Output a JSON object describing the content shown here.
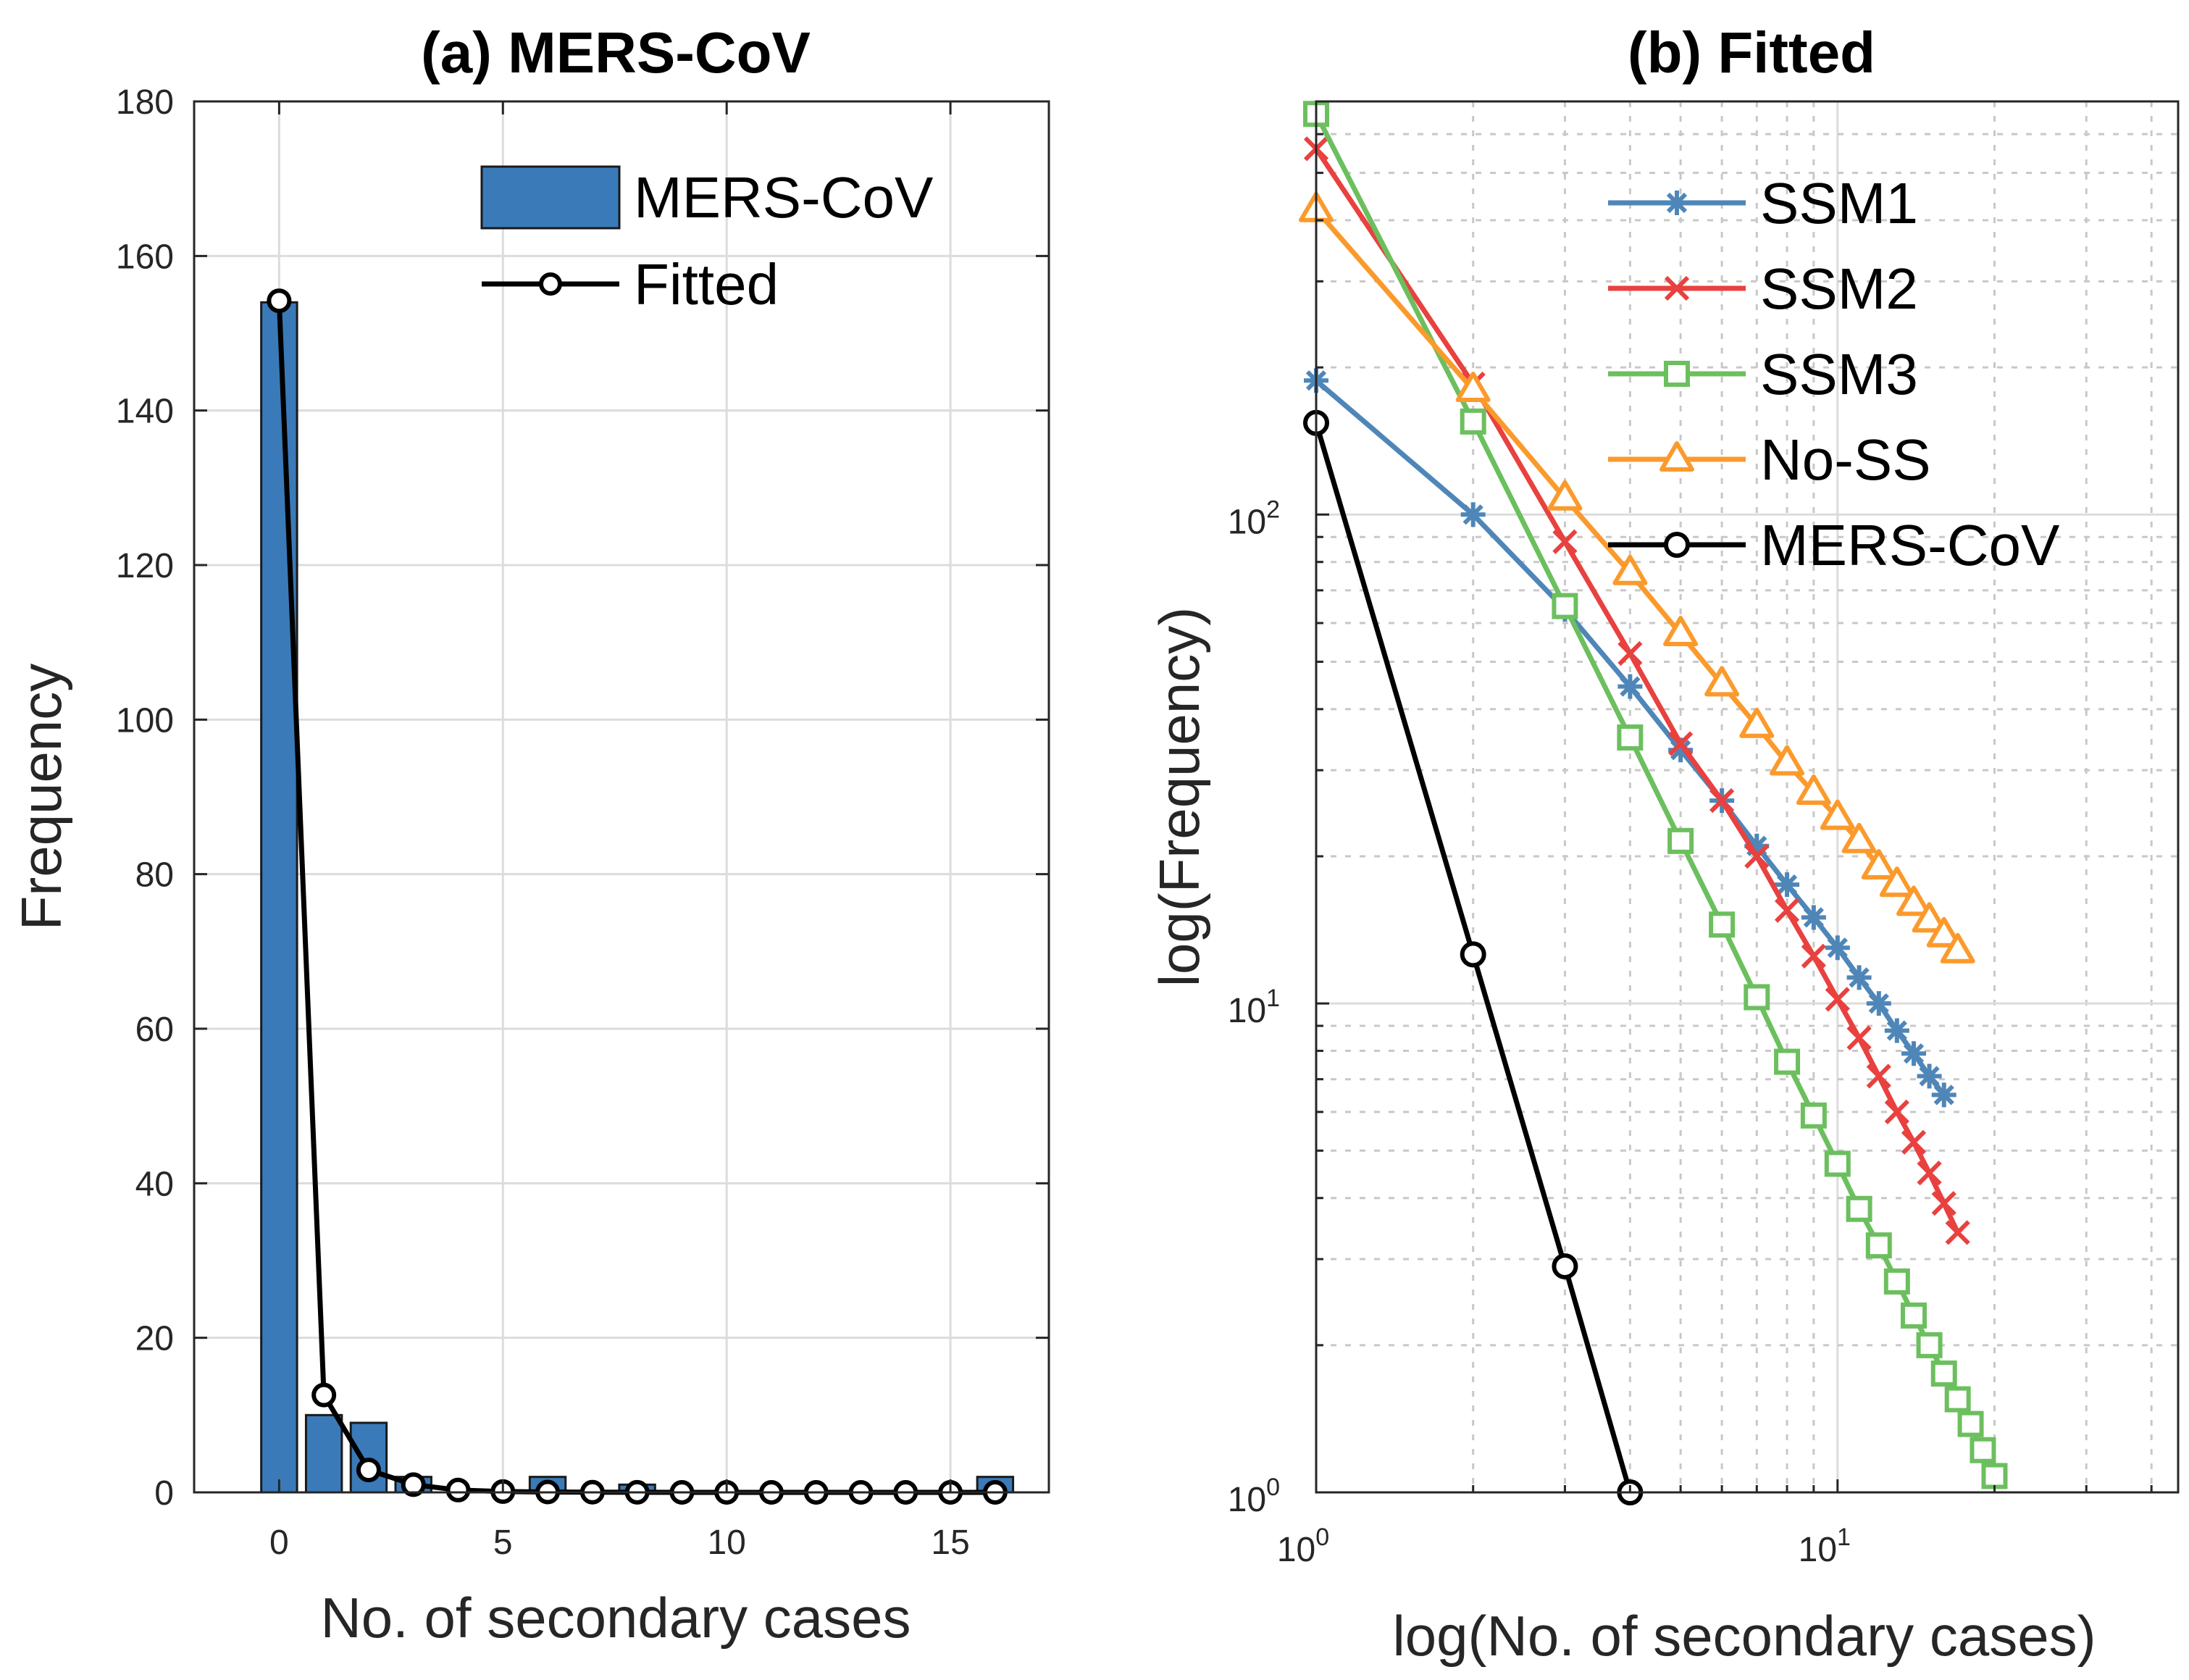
{
  "panel_a": {
    "title": "(a) MERS-CoV",
    "xlabel": "No. of secondary cases",
    "ylabel": "Frequency",
    "legend": [
      "MERS-CoV",
      "Fitted"
    ]
  },
  "panel_b": {
    "title": "(b) Fitted",
    "xlabel": "log(No. of secondary cases)",
    "ylabel": "log(Frequency)",
    "legend": [
      "SSM1",
      "SSM2",
      "SSM3",
      "No-SS",
      "MERS-CoV"
    ]
  },
  "colors": {
    "bar": "#3a7ab8",
    "fitted": "#000000",
    "SSM1": "#4f86b8",
    "SSM2": "#e8413f",
    "SSM3": "#6cbf5e",
    "No-SS": "#fb9a2c",
    "MERS-CoV": "#000000"
  },
  "chart_data": [
    {
      "type": "bar",
      "title": "(a) MERS-CoV",
      "xlabel": "No. of secondary cases",
      "ylabel": "Frequency",
      "xlim": [
        -1.9,
        17.2
      ],
      "ylim": [
        0,
        180
      ],
      "xticks": [
        0,
        5,
        10,
        15
      ],
      "yticks": [
        0,
        20,
        40,
        60,
        80,
        100,
        120,
        140,
        160,
        180
      ],
      "grid": true,
      "legend_position": "top-right",
      "bar_series": {
        "name": "MERS-CoV",
        "x": [
          0,
          1,
          2,
          3,
          4,
          5,
          6,
          7,
          8,
          9,
          10,
          11,
          12,
          13,
          14,
          15,
          16
        ],
        "values": [
          154,
          10,
          9,
          2,
          0,
          0,
          2,
          0,
          1,
          0,
          0,
          0,
          0,
          0,
          0,
          0,
          2
        ]
      },
      "line_series": {
        "name": "Fitted",
        "x": [
          0,
          1,
          2,
          3,
          4,
          5,
          6,
          7,
          8,
          9,
          10,
          11,
          12,
          13,
          14,
          15,
          16
        ],
        "values": [
          154.2,
          12.6,
          2.9,
          1.0,
          0.3,
          0.1,
          0.05,
          0.02,
          0.01,
          0,
          0,
          0,
          0,
          0,
          0,
          0,
          0
        ]
      }
    },
    {
      "type": "line",
      "title": "(b) Fitted",
      "xlabel": "log(No. of secondary cases)",
      "ylabel": "log(Frequency)",
      "x_scale": "log",
      "y_scale": "log",
      "xlim": [
        1,
        45
      ],
      "ylim": [
        1,
        700
      ],
      "xticks": [
        1,
        10
      ],
      "xtick_labels": [
        "10^0",
        "10^1"
      ],
      "yticks": [
        1,
        10,
        100
      ],
      "ytick_labels": [
        "10^0",
        "10^1",
        "10^2"
      ],
      "grid": true,
      "legend_position": "top-right",
      "series": [
        {
          "name": "SSM1",
          "marker": "asterisk",
          "x": [
            1,
            2,
            3,
            4,
            5,
            6,
            7,
            8,
            9,
            10,
            11,
            12,
            13,
            14,
            15,
            16
          ],
          "values": [
            188,
            100,
            64,
            44.5,
            33,
            26,
            21,
            17.5,
            15,
            13,
            11.3,
            10,
            8.8,
            7.9,
            7.1,
            6.5
          ]
        },
        {
          "name": "SSM2",
          "marker": "x",
          "x": [
            1,
            2,
            3,
            4,
            5,
            6,
            7,
            8,
            9,
            10,
            11,
            12,
            13,
            14,
            15,
            16,
            17
          ],
          "values": [
            560,
            185,
            88,
            52,
            34,
            26,
            20,
            15.5,
            12.5,
            10.2,
            8.5,
            7.1,
            6.0,
            5.2,
            4.5,
            3.9,
            3.4
          ]
        },
        {
          "name": "SSM3",
          "marker": "square",
          "x": [
            1,
            2,
            3,
            4,
            5,
            6,
            7,
            8,
            9,
            10,
            11,
            12,
            13,
            14,
            15,
            16,
            17,
            18,
            19,
            20
          ],
          "values": [
            660,
            155,
            65,
            35,
            21.5,
            14.5,
            10.3,
            7.6,
            5.9,
            4.7,
            3.8,
            3.2,
            2.7,
            2.3,
            2.0,
            1.75,
            1.55,
            1.38,
            1.22,
            1.08
          ]
        },
        {
          "name": "No-SS",
          "marker": "triangle",
          "x": [
            1,
            2,
            3,
            4,
            5,
            6,
            7,
            8,
            9,
            10,
            11,
            12,
            13,
            14,
            15,
            16,
            17
          ],
          "values": [
            420,
            180,
            108,
            76,
            57,
            45,
            37,
            31,
            27,
            24,
            21.5,
            19,
            17.5,
            16,
            14.8,
            13.8,
            12.8
          ]
        },
        {
          "name": "MERS-CoV",
          "marker": "circle",
          "x": [
            1,
            2,
            3,
            4
          ],
          "values": [
            154,
            12.6,
            2.9,
            1.0
          ]
        }
      ]
    }
  ]
}
